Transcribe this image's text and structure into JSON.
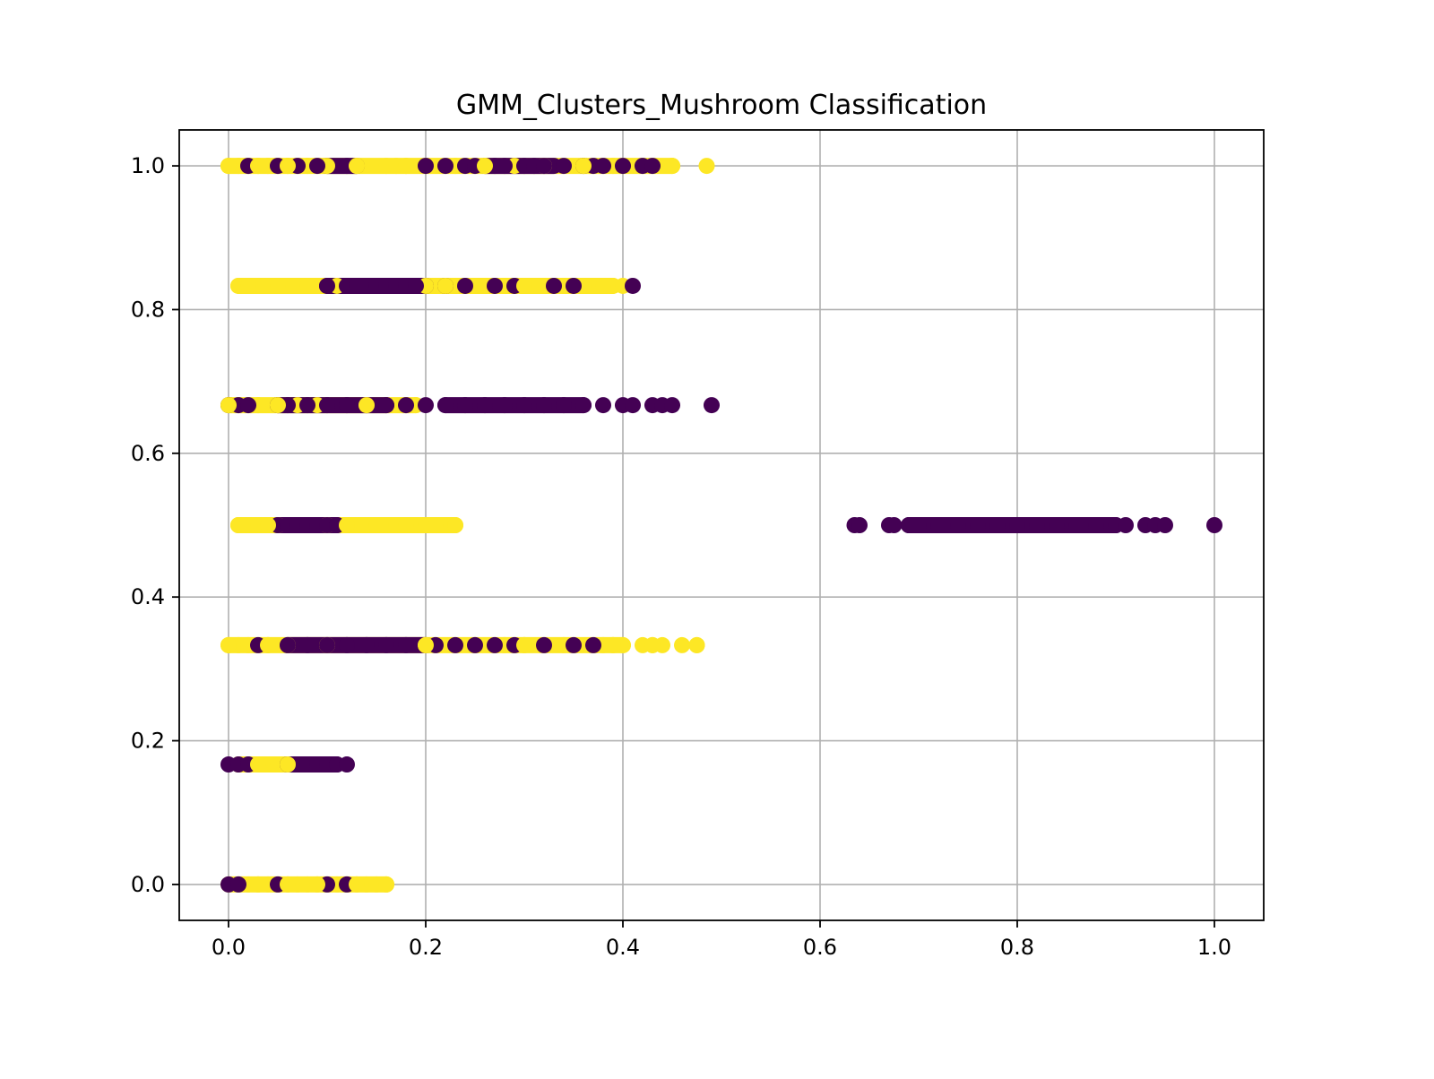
{
  "chart_data": {
    "type": "scatter",
    "title": "GMM_Clusters_Mushroom Classification",
    "xlabel": "",
    "ylabel": "",
    "xlim": [
      -0.05,
      1.05
    ],
    "ylim": [
      -0.05,
      1.05
    ],
    "xticks": [
      0.0,
      0.2,
      0.4,
      0.6,
      0.8,
      1.0
    ],
    "yticks": [
      0.0,
      0.2,
      0.4,
      0.6,
      0.8,
      1.0
    ],
    "xtick_labels": [
      "0.0",
      "0.2",
      "0.4",
      "0.6",
      "0.8",
      "1.0"
    ],
    "ytick_labels": [
      "0.0",
      "0.2",
      "0.4",
      "0.6",
      "0.8",
      "1.0"
    ],
    "grid": true,
    "legend": "none",
    "colors": {
      "cluster_0": "#440154",
      "cluster_1": "#fde725"
    },
    "series": [
      {
        "cluster": 1,
        "x": [
          0.0,
          0.01,
          0.02,
          0.03,
          0.04,
          0.05,
          0.06,
          0.08,
          0.1,
          0.13,
          0.16,
          0.17,
          0.18,
          0.2,
          0.23,
          0.26,
          0.29,
          0.32,
          0.36,
          0.39,
          0.42,
          0.45,
          0.485,
          0.01,
          0.02,
          0.035,
          0.05,
          0.08,
          0.11,
          0.2,
          0.22,
          0.26,
          0.28,
          0.3,
          0.33,
          0.36,
          0.38,
          0.39,
          0.4,
          0.0,
          0.01,
          0.03,
          0.05,
          0.07,
          0.09,
          0.14,
          0.18,
          0.19,
          0.01,
          0.02,
          0.03,
          0.04,
          0.05,
          0.1,
          0.12,
          0.13,
          0.14,
          0.15,
          0.16,
          0.17,
          0.18,
          0.19,
          0.2,
          0.21,
          0.22,
          0.23,
          0.0,
          0.01,
          0.02,
          0.04,
          0.06,
          0.1,
          0.2,
          0.25,
          0.28,
          0.3,
          0.34,
          0.38,
          0.39,
          0.4,
          0.42,
          0.43,
          0.44,
          0.46,
          0.475,
          0.01,
          0.02,
          0.03,
          0.04,
          0.05,
          0.06,
          0.01,
          0.02,
          0.03,
          0.04,
          0.05,
          0.06,
          0.07,
          0.08,
          0.09,
          0.11,
          0.12,
          0.13,
          0.14,
          0.15,
          0.16
        ],
        "y": [
          1.0,
          1.0,
          1.0,
          1.0,
          1.0,
          1.0,
          1.0,
          1.0,
          1.0,
          1.0,
          1.0,
          1.0,
          1.0,
          1.0,
          1.0,
          1.0,
          1.0,
          1.0,
          1.0,
          1.0,
          1.0,
          1.0,
          1.0,
          0.833,
          0.833,
          0.833,
          0.833,
          0.833,
          0.833,
          0.833,
          0.833,
          0.833,
          0.833,
          0.833,
          0.833,
          0.833,
          0.833,
          0.833,
          0.833,
          0.667,
          0.667,
          0.667,
          0.667,
          0.667,
          0.667,
          0.667,
          0.667,
          0.667,
          0.5,
          0.5,
          0.5,
          0.5,
          0.5,
          0.5,
          0.5,
          0.5,
          0.5,
          0.5,
          0.5,
          0.5,
          0.5,
          0.5,
          0.5,
          0.5,
          0.5,
          0.5,
          0.333,
          0.333,
          0.333,
          0.333,
          0.333,
          0.333,
          0.333,
          0.333,
          0.333,
          0.333,
          0.333,
          0.333,
          0.333,
          0.333,
          0.333,
          0.333,
          0.333,
          0.333,
          0.333,
          0.167,
          0.167,
          0.167,
          0.167,
          0.167,
          0.167,
          0.0,
          0.0,
          0.0,
          0.0,
          0.0,
          0.0,
          0.0,
          0.0,
          0.0,
          0.0,
          0.0,
          0.0,
          0.0,
          0.0,
          0.0
        ]
      },
      {
        "cluster": 0,
        "x": [
          0.02,
          0.05,
          0.07,
          0.09,
          0.12,
          0.2,
          0.22,
          0.24,
          0.25,
          0.27,
          0.28,
          0.3,
          0.31,
          0.32,
          0.34,
          0.36,
          0.37,
          0.38,
          0.4,
          0.42,
          0.43,
          0.1,
          0.12,
          0.13,
          0.14,
          0.15,
          0.16,
          0.17,
          0.18,
          0.19,
          0.22,
          0.24,
          0.27,
          0.29,
          0.33,
          0.35,
          0.41,
          0.0,
          0.01,
          0.02,
          0.05,
          0.06,
          0.08,
          0.1,
          0.12,
          0.14,
          0.16,
          0.18,
          0.2,
          0.22,
          0.24,
          0.26,
          0.28,
          0.3,
          0.32,
          0.34,
          0.36,
          0.38,
          0.4,
          0.41,
          0.43,
          0.44,
          0.45,
          0.49,
          0.05,
          0.06,
          0.07,
          0.08,
          0.09,
          0.1,
          0.11,
          0.635,
          0.64,
          0.67,
          0.675,
          0.69,
          0.7,
          0.72,
          0.74,
          0.76,
          0.78,
          0.8,
          0.82,
          0.84,
          0.86,
          0.88,
          0.9,
          0.91,
          0.93,
          0.94,
          0.95,
          1.0,
          0.03,
          0.06,
          0.08,
          0.1,
          0.12,
          0.14,
          0.16,
          0.18,
          0.21,
          0.23,
          0.25,
          0.27,
          0.29,
          0.32,
          0.35,
          0.37,
          0.0,
          0.01,
          0.02,
          0.06,
          0.08,
          0.09,
          0.1,
          0.11,
          0.12,
          0.0,
          0.01,
          0.05,
          0.1,
          0.12
        ],
        "y": [
          1.0,
          1.0,
          1.0,
          1.0,
          1.0,
          1.0,
          1.0,
          1.0,
          1.0,
          1.0,
          1.0,
          1.0,
          1.0,
          1.0,
          1.0,
          1.0,
          1.0,
          1.0,
          1.0,
          1.0,
          1.0,
          0.833,
          0.833,
          0.833,
          0.833,
          0.833,
          0.833,
          0.833,
          0.833,
          0.833,
          0.833,
          0.833,
          0.833,
          0.833,
          0.833,
          0.833,
          0.833,
          0.667,
          0.667,
          0.667,
          0.667,
          0.667,
          0.667,
          0.667,
          0.667,
          0.667,
          0.667,
          0.667,
          0.667,
          0.667,
          0.667,
          0.667,
          0.667,
          0.667,
          0.667,
          0.667,
          0.667,
          0.667,
          0.667,
          0.667,
          0.667,
          0.667,
          0.667,
          0.667,
          0.5,
          0.5,
          0.5,
          0.5,
          0.5,
          0.5,
          0.5,
          0.5,
          0.5,
          0.5,
          0.5,
          0.5,
          0.5,
          0.5,
          0.5,
          0.5,
          0.5,
          0.5,
          0.5,
          0.5,
          0.5,
          0.5,
          0.5,
          0.5,
          0.5,
          0.5,
          0.5,
          0.5,
          0.333,
          0.333,
          0.333,
          0.333,
          0.333,
          0.333,
          0.333,
          0.333,
          0.333,
          0.333,
          0.333,
          0.333,
          0.333,
          0.333,
          0.333,
          0.333,
          0.167,
          0.167,
          0.167,
          0.167,
          0.167,
          0.167,
          0.167,
          0.167,
          0.167,
          0.0,
          0.0,
          0.0,
          0.0,
          0.0
        ]
      }
    ],
    "bands": [
      {
        "cluster": 1,
        "y": 1.0,
        "x_from": 0.0,
        "x_to": 0.45
      },
      {
        "cluster": 0,
        "y": 1.0,
        "x_from": 0.1,
        "x_to": 0.13
      },
      {
        "cluster": 0,
        "y": 1.0,
        "x_from": 0.26,
        "x_to": 0.33
      },
      {
        "cluster": 1,
        "y": 0.833,
        "x_from": 0.01,
        "x_to": 0.39
      },
      {
        "cluster": 0,
        "y": 0.833,
        "x_from": 0.1,
        "x_to": 0.2
      },
      {
        "cluster": 1,
        "y": 0.667,
        "x_from": 0.0,
        "x_to": 0.19
      },
      {
        "cluster": 0,
        "y": 0.667,
        "x_from": 0.05,
        "x_to": 0.16
      },
      {
        "cluster": 0,
        "y": 0.667,
        "x_from": 0.22,
        "x_to": 0.36
      },
      {
        "cluster": 1,
        "y": 0.5,
        "x_from": 0.01,
        "x_to": 0.23
      },
      {
        "cluster": 0,
        "y": 0.5,
        "x_from": 0.05,
        "x_to": 0.11
      },
      {
        "cluster": 0,
        "y": 0.5,
        "x_from": 0.69,
        "x_to": 0.9
      },
      {
        "cluster": 1,
        "y": 0.333,
        "x_from": 0.0,
        "x_to": 0.4
      },
      {
        "cluster": 0,
        "y": 0.333,
        "x_from": 0.06,
        "x_to": 0.2
      },
      {
        "cluster": 1,
        "y": 0.167,
        "x_from": 0.01,
        "x_to": 0.06
      },
      {
        "cluster": 0,
        "y": 0.167,
        "x_from": 0.06,
        "x_to": 0.11
      },
      {
        "cluster": 1,
        "y": 0.0,
        "x_from": 0.0,
        "x_to": 0.16
      }
    ]
  }
}
